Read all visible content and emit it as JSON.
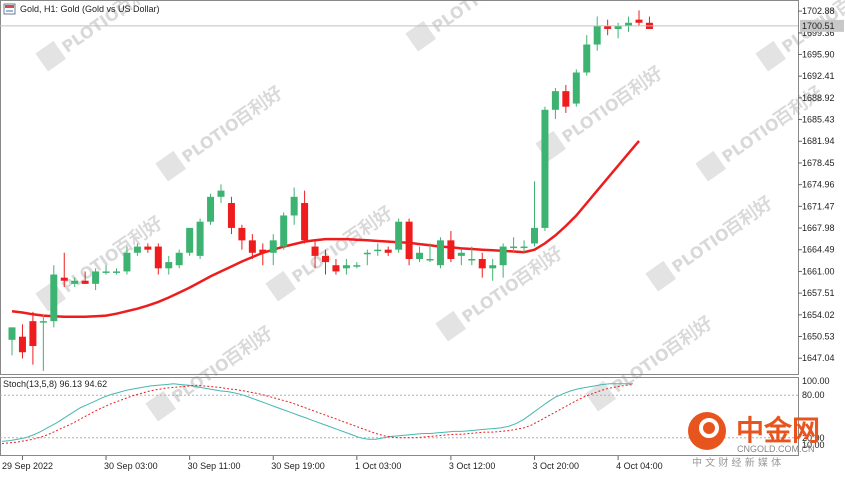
{
  "window": {
    "title": "Gold, H1:  Gold (Gold vs US Dollar)",
    "icon": "chart-window-icon"
  },
  "watermark": {
    "latin": "PLOTIO",
    "cjk": "百利好"
  },
  "logo": {
    "cjk": "中金网",
    "domain": "CNGOLD.COM.CN",
    "slogan": "中 文 财 经 新 媒 体",
    "color": "#e8541e"
  },
  "chart_data": [
    {
      "type": "candlestick",
      "title": "Gold, H1:  Gold (Gold vs US Dollar)",
      "up_color": "#3cb371",
      "down_color": "#ee1c1c",
      "ylim": [
        1644.5,
        1704.5
      ],
      "yticks": [
        "1702.88",
        "1699.36",
        "1695.90",
        "1692.41",
        "1688.92",
        "1685.43",
        "1681.94",
        "1678.45",
        "1674.96",
        "1671.47",
        "1667.98",
        "1664.49",
        "1661.00",
        "1657.51",
        "1654.02",
        "1650.53",
        "1647.04"
      ],
      "current_price": {
        "value": 1700.5,
        "label": "1700.51"
      },
      "xticks": [
        "29 Sep 2022",
        "30 Sep 03:00",
        "30 Sep 11:00",
        "30 Sep 19:00",
        "1 Oct 03:00",
        "3 Oct 12:00",
        "3 Oct 20:00",
        "4 Oct 04:00"
      ],
      "xtick_bars": [
        1,
        9,
        17,
        25,
        33,
        42,
        50,
        58
      ],
      "ohlc": [
        [
          1650.0,
          1652.0,
          1647.5,
          1652.0
        ],
        [
          1650.5,
          1652.5,
          1647.0,
          1648.0
        ],
        [
          1653.0,
          1654.5,
          1646.0,
          1649.0
        ],
        [
          1653.0,
          1654.0,
          1645.0,
          1653.0
        ],
        [
          1653.0,
          1662.0,
          1652.0,
          1660.5
        ],
        [
          1660.0,
          1664.0,
          1658.5,
          1659.5
        ],
        [
          1659.0,
          1660.0,
          1658.5,
          1659.5
        ],
        [
          1659.5,
          1661.0,
          1659.0,
          1659.0
        ],
        [
          1659.0,
          1661.5,
          1658.0,
          1661.0
        ],
        [
          1661.0,
          1662.0,
          1660.5,
          1661.0
        ],
        [
          1661.0,
          1661.5,
          1660.5,
          1661.0
        ],
        [
          1661.0,
          1665.0,
          1660.5,
          1664.0
        ],
        [
          1664.0,
          1665.5,
          1663.5,
          1665.0
        ],
        [
          1665.0,
          1665.5,
          1664.0,
          1664.5
        ],
        [
          1665.0,
          1665.5,
          1660.5,
          1661.5
        ],
        [
          1661.5,
          1663.5,
          1660.5,
          1662.5
        ],
        [
          1662.0,
          1664.5,
          1661.5,
          1664.0
        ],
        [
          1664.0,
          1668.0,
          1663.5,
          1668.0
        ],
        [
          1663.5,
          1669.5,
          1663.0,
          1669.0
        ],
        [
          1669.0,
          1673.5,
          1668.5,
          1673.0
        ],
        [
          1673.0,
          1675.0,
          1672.0,
          1674.0
        ],
        [
          1672.0,
          1673.0,
          1667.0,
          1668.0
        ],
        [
          1668.0,
          1668.5,
          1664.5,
          1666.0
        ],
        [
          1666.0,
          1667.0,
          1663.0,
          1664.0
        ],
        [
          1664.5,
          1665.5,
          1662.0,
          1664.0
        ],
        [
          1664.0,
          1667.0,
          1662.0,
          1666.0
        ],
        [
          1665.0,
          1670.5,
          1664.5,
          1670.0
        ],
        [
          1670.0,
          1674.5,
          1668.5,
          1673.0
        ],
        [
          1672.0,
          1674.0,
          1665.5,
          1666.0
        ],
        [
          1665.0,
          1666.0,
          1661.5,
          1663.5
        ],
        [
          1663.5,
          1664.5,
          1660.5,
          1662.5
        ],
        [
          1662.0,
          1663.0,
          1660.5,
          1661.0
        ],
        [
          1661.5,
          1663.0,
          1660.5,
          1662.0
        ],
        [
          1662.0,
          1662.5,
          1661.5,
          1662.0
        ],
        [
          1664.0,
          1664.5,
          1662.0,
          1664.0
        ],
        [
          1664.5,
          1665.5,
          1663.5,
          1664.5
        ],
        [
          1664.5,
          1665.0,
          1663.5,
          1664.0
        ],
        [
          1664.5,
          1669.5,
          1664.0,
          1669.0
        ],
        [
          1669.0,
          1669.5,
          1662.0,
          1663.0
        ],
        [
          1663.0,
          1665.0,
          1662.5,
          1664.0
        ],
        [
          1663.0,
          1665.5,
          1662.5,
          1663.0
        ],
        [
          1662.0,
          1666.5,
          1661.5,
          1666.0
        ],
        [
          1666.0,
          1667.5,
          1662.5,
          1663.0
        ],
        [
          1663.5,
          1664.5,
          1662.0,
          1664.0
        ],
        [
          1663.0,
          1665.0,
          1662.0,
          1663.0
        ],
        [
          1663.0,
          1664.0,
          1660.0,
          1661.5
        ],
        [
          1661.5,
          1663.0,
          1659.5,
          1662.0
        ],
        [
          1662.0,
          1665.5,
          1660.0,
          1665.0
        ],
        [
          1665.0,
          1666.5,
          1664.0,
          1665.0
        ],
        [
          1665.0,
          1666.0,
          1664.0,
          1665.0
        ],
        [
          1665.5,
          1675.5,
          1665.0,
          1668.0
        ],
        [
          1668.0,
          1687.5,
          1667.5,
          1687.0
        ],
        [
          1687.0,
          1690.5,
          1685.5,
          1690.0
        ],
        [
          1690.0,
          1691.0,
          1686.5,
          1687.5
        ],
        [
          1688.0,
          1693.5,
          1687.5,
          1693.0
        ],
        [
          1693.0,
          1699.0,
          1692.5,
          1697.5
        ],
        [
          1697.5,
          1702.0,
          1696.5,
          1700.5
        ],
        [
          1700.5,
          1701.5,
          1699.0,
          1700.0
        ],
        [
          1700.0,
          1701.0,
          1698.5,
          1700.5
        ],
        [
          1700.5,
          1702.0,
          1699.5,
          1701.0
        ],
        [
          1701.5,
          1703.0,
          1700.5,
          1701.0
        ],
        [
          1701.0,
          1702.0,
          1700.0,
          1700.0
        ]
      ],
      "ma": {
        "color": "#ee1c1c",
        "values": [
          1654.6,
          1654.4,
          1654.1,
          1653.9,
          1653.8,
          1653.7,
          1653.7,
          1653.7,
          1653.8,
          1653.9,
          1654.2,
          1654.6,
          1655.0,
          1655.5,
          1656.1,
          1656.8,
          1657.6,
          1658.4,
          1659.3,
          1660.2,
          1661.0,
          1661.8,
          1662.6,
          1663.3,
          1664.0,
          1664.5,
          1665.0,
          1665.4,
          1665.8,
          1666.0,
          1666.2,
          1666.2,
          1666.2,
          1666.1,
          1666.0,
          1665.9,
          1665.8,
          1665.7,
          1665.6,
          1665.4,
          1665.2,
          1665.0,
          1664.9,
          1664.7,
          1664.6,
          1664.5,
          1664.4,
          1664.3,
          1664.2,
          1664.1,
          1664.5,
          1665.5,
          1666.8,
          1668.3,
          1670.0,
          1672.0,
          1674.0,
          1676.0,
          1678.0,
          1680.0,
          1682.0
        ]
      }
    },
    {
      "type": "line",
      "title": "Stoch(13,5,8) 96.13 94.62",
      "ylim": [
        0,
        100
      ],
      "yticks": [
        "100.00",
        "80.00",
        "20.00",
        "10.00"
      ],
      "level_lines": [
        80,
        20
      ],
      "series": [
        {
          "name": "%K",
          "color": "#46b8b0",
          "style": "solid",
          "values": [
            15,
            16,
            18,
            20,
            24,
            29,
            35,
            41,
            48,
            55,
            62,
            67,
            72,
            77,
            81,
            84,
            87,
            89,
            91,
            93,
            94,
            95,
            96,
            95,
            94,
            92,
            90,
            88,
            86,
            85,
            83,
            80,
            76,
            72,
            68,
            64,
            60,
            56,
            52,
            48,
            44,
            40,
            36,
            32,
            28,
            24,
            20,
            18,
            18,
            20,
            22,
            23,
            24,
            25,
            26,
            26,
            27,
            28,
            29,
            29,
            30,
            31,
            32,
            33,
            34,
            36,
            40,
            46,
            54,
            62,
            70,
            77,
            82,
            86,
            89,
            91,
            93,
            95,
            96,
            96,
            96,
            96
          ]
        },
        {
          "name": "%D",
          "color": "#ee1c1c",
          "style": "dashed",
          "values": [
            12,
            13,
            14,
            16,
            18,
            21,
            25,
            30,
            35,
            40,
            46,
            52,
            58,
            63,
            68,
            72,
            76,
            80,
            83,
            86,
            88,
            90,
            91,
            92,
            93,
            94,
            93,
            92,
            91,
            89,
            88,
            86,
            84,
            82,
            79,
            76,
            73,
            70,
            66,
            62,
            58,
            54,
            50,
            46,
            42,
            38,
            34,
            30,
            26,
            23,
            21,
            20,
            20,
            20,
            21,
            22,
            23,
            24,
            25,
            25,
            26,
            27,
            28,
            28,
            29,
            30,
            32,
            34,
            38,
            44,
            50,
            56,
            62,
            68,
            74,
            79,
            83,
            87,
            90,
            92,
            94,
            95
          ]
        }
      ]
    }
  ]
}
